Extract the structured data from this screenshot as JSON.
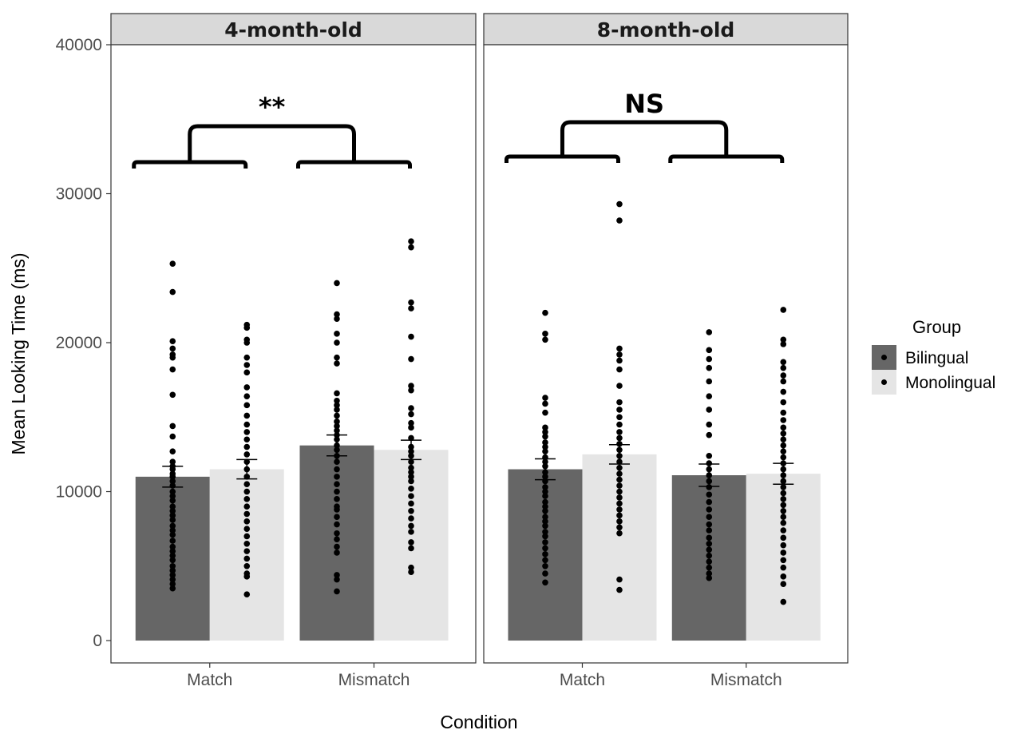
{
  "chart_data": {
    "type": "bar",
    "ylabel": "Mean Looking Time (ms)",
    "xlabel": "Condition",
    "ylim": [
      -1500,
      40000
    ],
    "yticks": [
      0,
      10000,
      20000,
      30000,
      40000
    ],
    "categories": [
      "Match",
      "Mismatch"
    ],
    "legend": {
      "title": "Group",
      "placement": "right",
      "entries": [
        {
          "name": "Bilingual",
          "color": "#666666"
        },
        {
          "name": "Monolingual",
          "color": "#e5e5e5"
        }
      ]
    },
    "panels": [
      {
        "title": "4-month-old",
        "significance": "**",
        "series": [
          {
            "name": "Bilingual",
            "values": [
              11000,
              13100
            ],
            "se": [
              700,
              700
            ]
          },
          {
            "name": "Monolingual",
            "values": [
              11500,
              12800
            ],
            "se": [
              650,
              650
            ]
          }
        ],
        "points": [
          [
            [
              25300,
              23400,
              20100,
              19600,
              19200,
              19000,
              18200,
              16500,
              14400,
              13700,
              12700,
              12000,
              11700,
              11500,
              11200,
              11000,
              10700,
              10400,
              10000,
              9700,
              9400,
              9000,
              8700,
              8400,
              8100,
              7700,
              7400,
              7100,
              6700,
              6300,
              6000,
              5700,
              5400,
              5000,
              4700,
              4400,
              4100,
              3800,
              3500
            ],
            [
              21200,
              21000,
              20200,
              20000,
              19000,
              18500,
              18000,
              17000,
              16400,
              15800,
              15100,
              14500,
              14000,
              13500,
              13000,
              12500,
              12000,
              11500,
              11000,
              10500,
              10000,
              9500,
              9000,
              8500,
              8000,
              7500,
              7000,
              6500,
              6000,
              5500,
              5000,
              4500,
              4300,
              3100
            ]
          ],
          [
            [
              24000,
              21900,
              21600,
              20600,
              20000,
              19000,
              18600,
              16600,
              16100,
              15800,
              15500,
              15100,
              14700,
              14400,
              14100,
              13800,
              13500,
              13100,
              12800,
              12400,
              12000,
              11500,
              11000,
              10500,
              10000,
              9500,
              9000,
              8800,
              8300,
              7800,
              7200,
              6800,
              6300,
              5900,
              4400,
              4100,
              3300
            ],
            [
              26800,
              26400,
              22700,
              22300,
              20400,
              18900,
              17100,
              16800,
              15600,
              15200,
              14600,
              14300,
              13600,
              13000,
              12700,
              12400,
              12000,
              11600,
              11300,
              11000,
              10700,
              10200,
              9700,
              9200,
              8700,
              8200,
              7700,
              7300,
              6600,
              6200,
              4900,
              4600
            ]
          ]
        ]
      },
      {
        "title": "8-month-old",
        "significance": "NS",
        "series": [
          {
            "name": "Bilingual",
            "values": [
              11500,
              11100
            ],
            "se": [
              700,
              750
            ]
          },
          {
            "name": "Monolingual",
            "values": [
              12500,
              11200
            ],
            "se": [
              650,
              700
            ]
          }
        ],
        "points": [
          [
            [
              22000,
              20600,
              20200,
              16300,
              15900,
              15300,
              14300,
              14000,
              13700,
              13300,
              13000,
              12700,
              12300,
              12000,
              11700,
              11300,
              11000,
              10700,
              10300,
              10000,
              9700,
              9300,
              9000,
              8700,
              8300,
              8000,
              7700,
              7300,
              7000,
              6600,
              6200,
              5800,
              5400,
              5000,
              4500,
              3900
            ],
            [
              29300,
              28200,
              19600,
              19200,
              18800,
              18200,
              17100,
              16000,
              15500,
              15000,
              14500,
              14000,
              13600,
              13200,
              12800,
              12400,
              12000,
              11600,
              11200,
              10800,
              10400,
              10000,
              9600,
              9200,
              8800,
              8400,
              8000,
              7600,
              7200,
              4100,
              3400
            ]
          ],
          [
            [
              20700,
              19500,
              18900,
              18300,
              17400,
              16400,
              15500,
              14500,
              13800,
              12400,
              11900,
              11500,
              11100,
              10700,
              10300,
              9800,
              9300,
              8800,
              8300,
              7800,
              7400,
              6900,
              6500,
              6100,
              5700,
              5300,
              4900,
              4500,
              4200
            ],
            [
              22200,
              20200,
              19900,
              18700,
              18300,
              17800,
              17400,
              16700,
              16000,
              15300,
              14800,
              14300,
              13900,
              13500,
              13100,
              12700,
              12300,
              11900,
              11500,
              11100,
              10700,
              10300,
              9900,
              9500,
              9100,
              8700,
              8300,
              7900,
              7400,
              6900,
              6400,
              5900,
              5400,
              4900,
              4300,
              3800,
              2600
            ]
          ]
        ]
      }
    ]
  }
}
